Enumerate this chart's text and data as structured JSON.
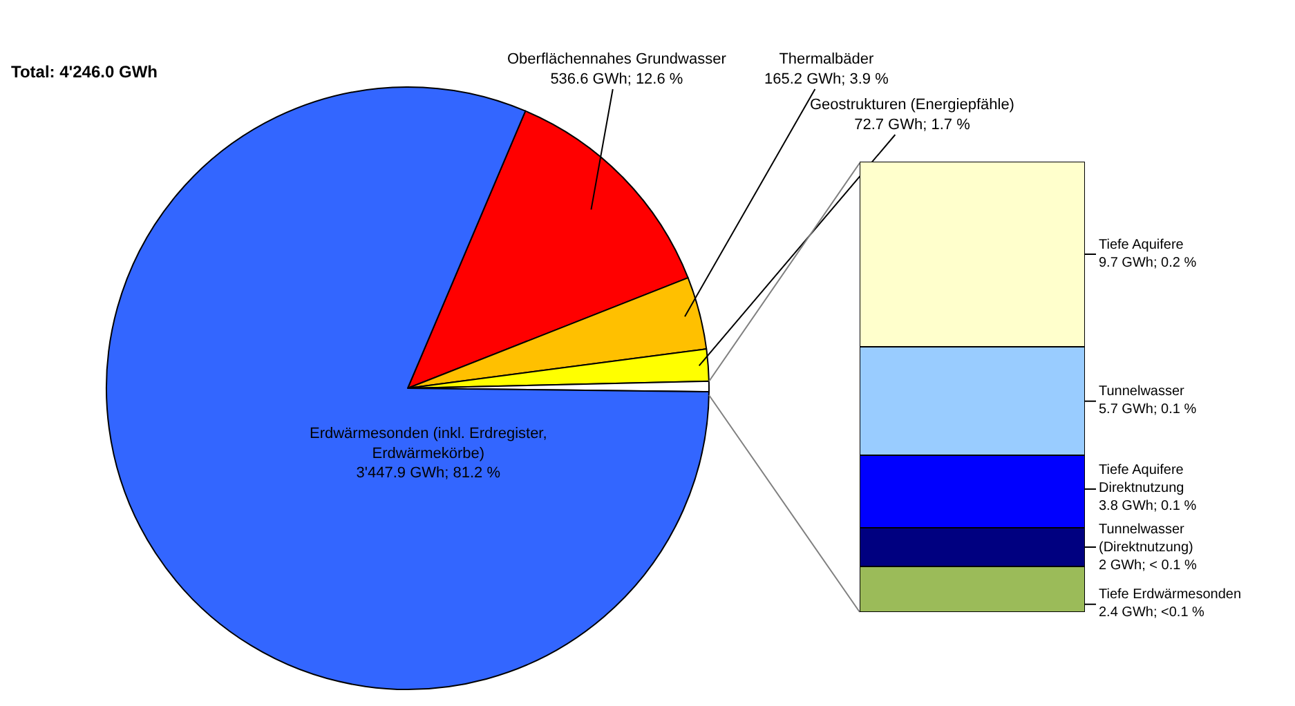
{
  "chart_data": [
    {
      "type": "pie",
      "title": "Total: 4'246.0 GWh",
      "legend": false,
      "categories": [
        "Oberflächennahes Grundwasser",
        "Thermalbäder",
        "Geostrukturen (Energiepfähle)",
        null,
        "Erdwärmesonden (inkl. Erdregister,\nErdwärmekörbe)"
      ],
      "values": [
        536.6,
        165.2,
        72.7,
        23.6,
        3447.9
      ],
      "value_labels": [
        "536.6 GWh; 12.6 %",
        "165.2 GWh; 3.9 %",
        "72.7 GWh; 1.7 %",
        null,
        "3'447.9 GWh; 81.2 %"
      ],
      "colors": [
        "#ff0000",
        "#ffc000",
        "#ffff00",
        "#ffffff",
        "#3366ff"
      ]
    },
    {
      "type": "bar",
      "stacked": true,
      "legend": false,
      "categories": [
        null
      ],
      "series": [
        {
          "name": "Tiefe Erdwärmesonden",
          "color": "#9bbb59",
          "values": [
            2.4
          ],
          "value_labels": [
            "2.4 GWh; <0.1 %"
          ]
        },
        {
          "name": "Tunnelwasser\n(Direktnutzung)",
          "color": "#000080",
          "values": [
            2
          ],
          "value_labels": [
            "2 GWh; < 0.1 %"
          ]
        },
        {
          "name": "Tiefe Aquifere\nDirektnutzung",
          "color": "#0000ff",
          "values": [
            3.8
          ],
          "value_labels": [
            "3.8 GWh; 0.1 %"
          ]
        },
        {
          "name": "Tunnelwasser",
          "color": "#99ccff",
          "values": [
            5.7
          ],
          "value_labels": [
            "5.7 GWh; 0.1 %"
          ]
        },
        {
          "name": "Tiefe Aquifere",
          "color": "#ffffcc",
          "values": [
            9.7
          ],
          "value_labels": [
            "9.7 GWh; 0.2 %"
          ]
        }
      ]
    }
  ]
}
